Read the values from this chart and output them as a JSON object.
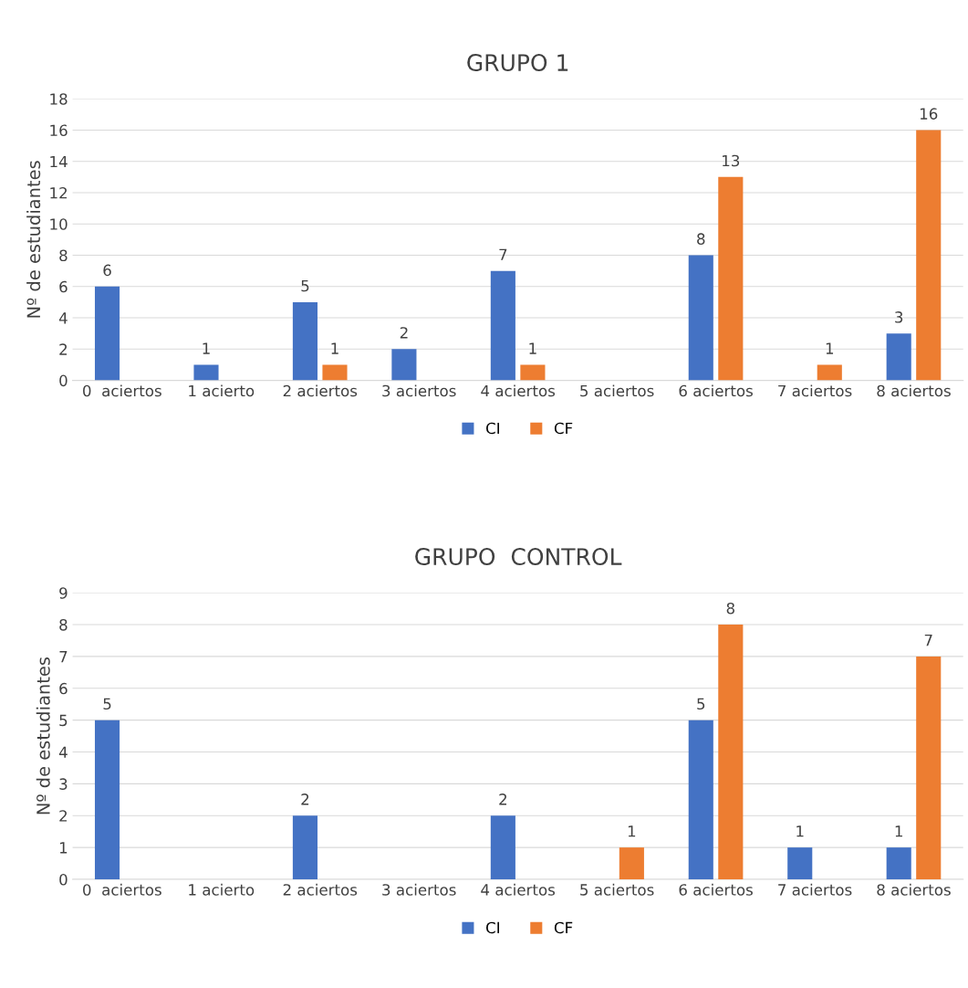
{
  "chart_data": [
    {
      "type": "bar",
      "title": "GRUPO 1",
      "ylabel": "Nº de estudiantes",
      "categories": [
        "0  aciertos",
        "1 acierto",
        "2 aciertos",
        "3 aciertos",
        "4 aciertos",
        "5 aciertos",
        "6 aciertos",
        "7 aciertos",
        "8 aciertos"
      ],
      "series": [
        {
          "name": "CI",
          "color": "#4472c4",
          "values": [
            6,
            1,
            5,
            2,
            7,
            null,
            8,
            null,
            3
          ]
        },
        {
          "name": "CF",
          "color": "#ed7d31",
          "values": [
            null,
            null,
            1,
            null,
            1,
            null,
            13,
            1,
            16
          ]
        }
      ],
      "ylim": [
        0,
        18
      ],
      "yticks": [
        0,
        2,
        4,
        6,
        8,
        10,
        12,
        14,
        16,
        18
      ],
      "grid": "y",
      "legend": "bottom",
      "data_labels": true
    },
    {
      "type": "bar",
      "title": "GRUPO  CONTROL",
      "ylabel": "Nº de estudiantes",
      "categories": [
        "0  aciertos",
        "1 acierto",
        "2 aciertos",
        "3 aciertos",
        "4 aciertos",
        "5 aciertos",
        "6 aciertos",
        "7 aciertos",
        "8 aciertos"
      ],
      "series": [
        {
          "name": "CI",
          "color": "#4472c4",
          "values": [
            5,
            null,
            2,
            null,
            2,
            null,
            5,
            1,
            1
          ]
        },
        {
          "name": "CF",
          "color": "#ed7d31",
          "values": [
            null,
            null,
            null,
            null,
            null,
            1,
            8,
            null,
            7
          ]
        }
      ],
      "ylim": [
        0,
        9
      ],
      "yticks": [
        0,
        1,
        2,
        3,
        4,
        5,
        6,
        7,
        8,
        9
      ],
      "grid": "y",
      "legend": "bottom",
      "data_labels": true
    }
  ]
}
